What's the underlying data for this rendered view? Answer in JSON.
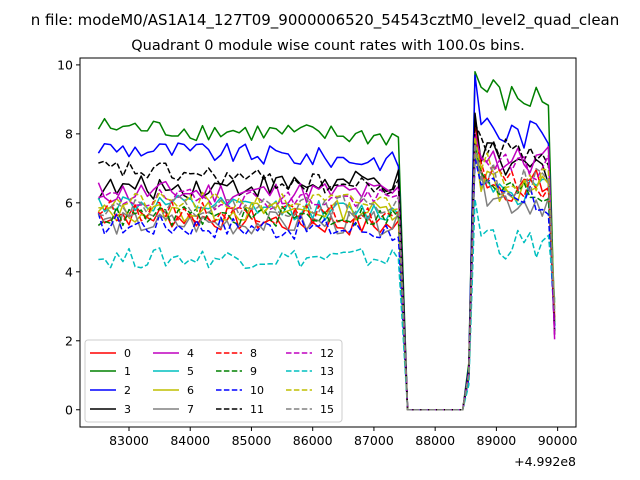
{
  "chart_data": {
    "type": "line",
    "suptitle": "n file: modeM0/AS1A14_127T09_9000006520_54543cztM0_level2_quad_clean",
    "title": "Quadrant 0 module wise count rates with 100.0s bins.",
    "xlabel": "",
    "ylabel": "",
    "x_offset_label": "+4.992e8",
    "xlim": [
      82200,
      90300
    ],
    "ylim": [
      -0.5,
      10.2
    ],
    "xticks": [
      83000,
      84000,
      85000,
      86000,
      87000,
      88000,
      89000,
      90000
    ],
    "xtick_labels": [
      "83000",
      "84000",
      "85000",
      "86000",
      "87000",
      "88000",
      "89000",
      "90000"
    ],
    "yticks": [
      0,
      2,
      4,
      6,
      8,
      10
    ],
    "ytick_labels": [
      "0",
      "2",
      "4",
      "6",
      "8",
      "10"
    ],
    "grid": false,
    "legend_location": "lower-left",
    "legend_columns": 4,
    "gap": {
      "start": 87550,
      "end": 88450,
      "value": 0
    },
    "series": [
      {
        "name": "0",
        "color": "#ff0000",
        "dash": "solid",
        "base1": 5.7,
        "amp1": 0.35,
        "drift": -0.4,
        "base2": 6.5,
        "peak": 8.4
      },
      {
        "name": "1",
        "color": "#008000",
        "dash": "solid",
        "base1": 8.2,
        "amp1": 0.3,
        "drift": -0.3,
        "base2": 9.0,
        "peak": 9.8
      },
      {
        "name": "2",
        "color": "#0000ff",
        "dash": "solid",
        "base1": 7.6,
        "amp1": 0.3,
        "drift": -0.4,
        "base2": 8.0,
        "peak": 9.7
      },
      {
        "name": "3",
        "color": "#000000",
        "dash": "solid",
        "base1": 6.4,
        "amp1": 0.35,
        "drift": 0.2,
        "base2": 7.0,
        "peak": 8.6
      },
      {
        "name": "4",
        "color": "#bf00bf",
        "dash": "solid",
        "base1": 6.3,
        "amp1": 0.35,
        "drift": 0.0,
        "base2": 7.2,
        "peak": 8.0
      },
      {
        "name": "5",
        "color": "#00bfbf",
        "dash": "solid",
        "base1": 6.0,
        "amp1": 0.3,
        "drift": -0.3,
        "base2": 6.4,
        "peak": 7.8
      },
      {
        "name": "6",
        "color": "#bfbf00",
        "dash": "solid",
        "base1": 5.7,
        "amp1": 0.3,
        "drift": 0.1,
        "base2": 6.4,
        "peak": 7.6
      },
      {
        "name": "7",
        "color": "#808080",
        "dash": "solid",
        "base1": 5.4,
        "amp1": 0.35,
        "drift": 0.0,
        "base2": 6.1,
        "peak": 7.3
      },
      {
        "name": "8",
        "color": "#ff0000",
        "dash": "dashed",
        "base1": 5.8,
        "amp1": 0.3,
        "drift": -0.2,
        "base2": 6.5,
        "peak": 7.9
      },
      {
        "name": "9",
        "color": "#008000",
        "dash": "dashed",
        "base1": 5.6,
        "amp1": 0.3,
        "drift": 0.0,
        "base2": 6.3,
        "peak": 7.7
      },
      {
        "name": "10",
        "color": "#0000ff",
        "dash": "dashed",
        "base1": 5.4,
        "amp1": 0.35,
        "drift": -0.2,
        "base2": 6.0,
        "peak": 7.3
      },
      {
        "name": "11",
        "color": "#000000",
        "dash": "dashed",
        "base1": 7.0,
        "amp1": 0.3,
        "drift": -0.6,
        "base2": 7.5,
        "peak": 8.3
      },
      {
        "name": "12",
        "color": "#bf00bf",
        "dash": "dashed",
        "base1": 6.1,
        "amp1": 0.3,
        "drift": 0.0,
        "base2": 7.0,
        "peak": 7.9
      },
      {
        "name": "13",
        "color": "#00bfbf",
        "dash": "dashed",
        "base1": 4.4,
        "amp1": 0.3,
        "drift": 0.0,
        "base2": 4.8,
        "peak": 6.1
      },
      {
        "name": "14",
        "color": "#bfbf00",
        "dash": "dashed",
        "base1": 6.0,
        "amp1": 0.3,
        "drift": 0.0,
        "base2": 6.8,
        "peak": 7.9
      },
      {
        "name": "15",
        "color": "#808080",
        "dash": "dashed",
        "base1": 5.9,
        "amp1": 0.3,
        "drift": 0.0,
        "base2": 6.6,
        "peak": 7.7
      }
    ]
  }
}
